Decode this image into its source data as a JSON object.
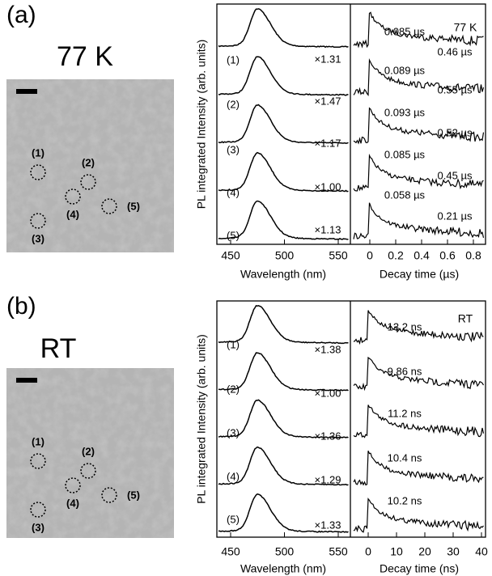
{
  "panels": [
    {
      "label": "(a)",
      "condition": "77 K",
      "regions": [
        "(1)",
        "(2)",
        "(3)",
        "(4)",
        "(5)"
      ],
      "spectra": {
        "y_label": "PL integrated Intensity (arb. units)",
        "x_label": "Wavelength (nm)",
        "x_ticks": [
          "450",
          "500",
          "550"
        ],
        "rows": [
          {
            "label": "(1)",
            "factor": "×1.31"
          },
          {
            "label": "(2)",
            "factor": "×1.47"
          },
          {
            "label": "(3)",
            "factor": "×1.17"
          },
          {
            "label": "(4)",
            "factor": "×1.00"
          },
          {
            "label": "(5)",
            "factor": "×1.13"
          }
        ]
      },
      "decay": {
        "x_label": "Decay time (µs)",
        "x_ticks": [
          "0",
          "0.2",
          "0.4",
          "0.6",
          "0.8"
        ],
        "condition": "77 K",
        "fits": [
          [
            "0.085 µs",
            "0.46 µs"
          ],
          [
            "0.089 µs",
            "0.55 µs"
          ],
          [
            "0.093 µs",
            "0.52 µs"
          ],
          [
            "0.085 µs",
            "0.45 µs"
          ],
          [
            "0.058 µs",
            "0.21 µs"
          ]
        ]
      }
    },
    {
      "label": "(b)",
      "condition": "RT",
      "regions": [
        "(1)",
        "(2)",
        "(3)",
        "(4)",
        "(5)"
      ],
      "spectra": {
        "y_label": "PL integrated Intensity (arb. units)",
        "x_label": "Wavelength (nm)",
        "x_ticks": [
          "450",
          "500",
          "550"
        ],
        "rows": [
          {
            "label": "(1)",
            "factor": "×1.38"
          },
          {
            "label": "(2)",
            "factor": "×1.00"
          },
          {
            "label": "(3)",
            "factor": "×1.36"
          },
          {
            "label": "(4)",
            "factor": "×1.29"
          },
          {
            "label": "(5)",
            "factor": "×1.33"
          }
        ]
      },
      "decay": {
        "x_label": "Decay time (ns)",
        "x_ticks": [
          "0",
          "10",
          "20",
          "30",
          "40"
        ],
        "condition": "RT",
        "fits": [
          [
            "13.2 ns"
          ],
          [
            "9.86 ns"
          ],
          [
            "11.2 ns"
          ],
          [
            "10.4 ns"
          ],
          [
            "10.2 ns"
          ]
        ]
      }
    }
  ]
}
